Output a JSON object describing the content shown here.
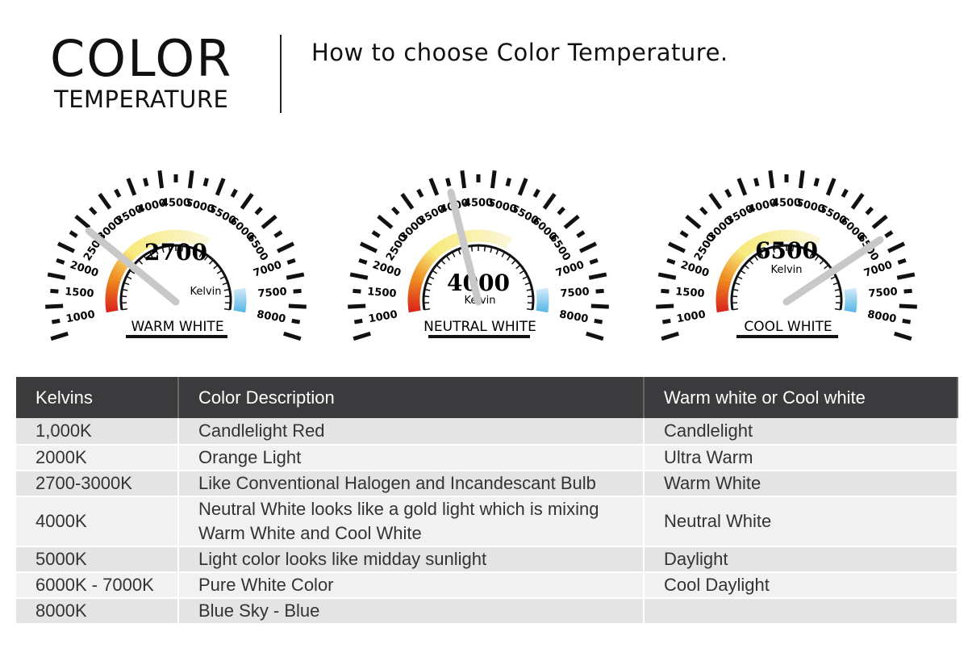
{
  "header": {
    "title_line1": "COLOR",
    "title_line2": "TEMPERATURE",
    "subtitle": "How to choose Color Temperature."
  },
  "gauges": [
    {
      "value": 2700,
      "value_label": "2700",
      "unit": "Kelvin",
      "caption": "WARM WHITE"
    },
    {
      "value": 4000,
      "value_label": "4000",
      "unit": "Kelvin",
      "caption": "NEUTRAL WHITE"
    },
    {
      "value": 6500,
      "value_label": "6500",
      "unit": "Kelvin",
      "caption": "COOL WHITE"
    }
  ],
  "scale": {
    "min": 1000,
    "max": 8000,
    "step": 500,
    "labels": [
      "1000",
      "1500",
      "2000",
      "2500",
      "3000",
      "3500",
      "4000",
      "4500",
      "5000",
      "5500",
      "6000",
      "6500",
      "7000",
      "7500",
      "8000"
    ]
  },
  "colors": {
    "red": "#d9241c",
    "orange": "#ee8a1e",
    "yellow": "#f7ea7c",
    "blue": "#5ab7e6",
    "needle": "#c8c8c8",
    "table_header": "#3b3b3d"
  },
  "table": {
    "headers": [
      "Kelvins",
      "Color Description",
      "Warm white or Cool white"
    ],
    "rows": [
      [
        "1,000K",
        "Candlelight Red",
        "Candlelight"
      ],
      [
        "2000K",
        "Orange Light",
        "Ultra Warm"
      ],
      [
        "2700-3000K",
        "Like Conventional Halogen and Incandescant Bulb",
        "Warm White"
      ],
      [
        "4000K",
        "Neutral White looks like a gold light which is mixing Warm White and Cool White",
        "Neutral White"
      ],
      [
        "5000K",
        "Light color looks like midday sunlight",
        "Daylight"
      ],
      [
        "6000K - 7000K",
        "Pure White Color",
        "Cool Daylight"
      ],
      [
        "8000K",
        "Blue Sky - Blue",
        ""
      ]
    ]
  }
}
